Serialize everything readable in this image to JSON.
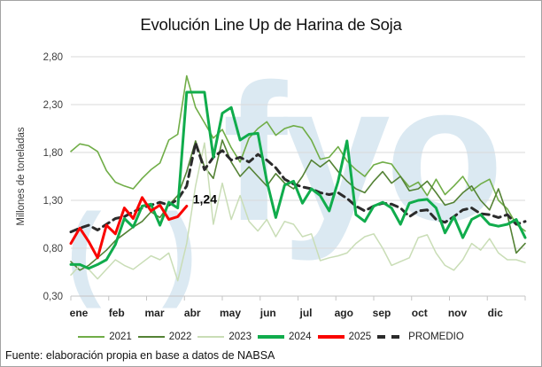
{
  "window": {
    "background": "#ffffff",
    "border_color": "#a3a3a3"
  },
  "chart_data": {
    "type": "line",
    "title": "Evolución Line Up de Harina de Soja",
    "ylabel": "Millones de toneladas",
    "xlabel": "",
    "ylim": [
      0.3,
      2.8
    ],
    "yticks": [
      0.3,
      0.8,
      1.3,
      1.8,
      2.3,
      2.8
    ],
    "ytick_labels": [
      "0,30",
      "0,80",
      "1,30",
      "1,80",
      "2,30",
      "2,80"
    ],
    "categories": [
      "ene",
      "feb",
      "mar",
      "abr",
      "may",
      "jun",
      "jul",
      "ago",
      "sep",
      "oct",
      "nov",
      "dic"
    ],
    "frequency": "weekly",
    "grid": "horizontal",
    "legend_position": "bottom",
    "watermark": {
      "text": "fyo",
      "prefix_glyphs": [
        "(",
        ")"
      ],
      "color": "#dbe9f2"
    },
    "annotation": {
      "text": "1,24",
      "series": "2025",
      "value": 1.24
    },
    "legend_order": [
      "2021",
      "2022",
      "2023",
      "2024",
      "2025",
      "PROMEDIO"
    ],
    "series": [
      {
        "name": "2021",
        "color": "#70ad47",
        "width": 1.6,
        "dash": null,
        "values": [
          1.81,
          1.89,
          1.87,
          1.81,
          1.61,
          1.49,
          1.45,
          1.42,
          1.53,
          1.62,
          1.69,
          1.93,
          1.99,
          2.6,
          2.27,
          2.11,
          1.95,
          2.04,
          1.85,
          1.7,
          1.95,
          2.05,
          2.12,
          1.98,
          2.05,
          2.08,
          2.06,
          1.93,
          1.73,
          1.75,
          1.86,
          1.71,
          1.62,
          1.55,
          1.67,
          1.7,
          1.68,
          1.55,
          1.44,
          1.49,
          1.35,
          1.52,
          1.36,
          1.45,
          1.55,
          1.4,
          1.47,
          1.52,
          1.3,
          1.21,
          1.05,
          0.98
        ]
      },
      {
        "name": "2022",
        "color": "#548235",
        "width": 1.6,
        "dash": null,
        "values": [
          0.66,
          0.57,
          0.62,
          0.7,
          0.78,
          0.88,
          0.95,
          1.02,
          1.08,
          1.18,
          1.12,
          1.25,
          1.35,
          1.6,
          1.92,
          1.65,
          1.53,
          1.93,
          1.7,
          1.55,
          1.65,
          1.55,
          1.45,
          1.58,
          1.48,
          1.42,
          1.55,
          1.72,
          1.65,
          1.72,
          1.6,
          1.5,
          1.42,
          1.38,
          1.5,
          1.6,
          1.48,
          1.55,
          1.4,
          1.42,
          1.5,
          1.38,
          1.25,
          1.28,
          1.38,
          1.45,
          1.3,
          1.2,
          1.42,
          1.15,
          0.75,
          0.85
        ]
      },
      {
        "name": "2023",
        "color": "#c9ddb6",
        "width": 1.5,
        "dash": null,
        "values": [
          0.52,
          0.62,
          0.58,
          0.48,
          0.58,
          0.68,
          0.62,
          0.58,
          0.65,
          0.72,
          0.68,
          0.75,
          0.46,
          0.85,
          1.45,
          1.9,
          1.05,
          1.48,
          1.1,
          1.35,
          1.08,
          0.98,
          1.1,
          0.92,
          1.08,
          1.05,
          0.92,
          0.95,
          0.67,
          0.7,
          0.72,
          0.75,
          0.85,
          0.92,
          0.95,
          0.8,
          0.62,
          0.66,
          0.7,
          0.91,
          0.94,
          0.75,
          0.62,
          0.57,
          0.68,
          0.85,
          0.78,
          0.9,
          0.75,
          0.68,
          0.68,
          0.65
        ]
      },
      {
        "name": "PROMEDIO",
        "color": "#2b2b2b",
        "width": 3,
        "dash": "8 5.5",
        "values": [
          0.97,
          1.01,
          1.04,
          0.99,
          1.05,
          1.11,
          1.13,
          1.18,
          1.22,
          1.25,
          1.28,
          1.25,
          1.31,
          1.45,
          1.9,
          1.62,
          1.75,
          1.82,
          1.72,
          1.75,
          1.7,
          1.78,
          1.72,
          1.64,
          1.52,
          1.47,
          1.44,
          1.42,
          1.38,
          1.36,
          1.38,
          1.32,
          1.24,
          1.19,
          1.24,
          1.27,
          1.26,
          1.22,
          1.13,
          1.19,
          1.2,
          1.1,
          1.07,
          1.13,
          1.2,
          1.22,
          1.16,
          1.15,
          1.12,
          1.15,
          1.05,
          1.08
        ]
      },
      {
        "name": "2024",
        "color": "#10ac4c",
        "width": 3,
        "dash": null,
        "values": [
          0.63,
          0.63,
          0.59,
          0.63,
          0.68,
          0.84,
          1.11,
          1.02,
          1.24,
          1.26,
          1.04,
          1.28,
          1.22,
          2.43,
          2.43,
          2.43,
          1.75,
          2.21,
          2.27,
          1.93,
          1.99,
          2.0,
          1.5,
          1.12,
          1.46,
          1.5,
          1.27,
          1.42,
          1.35,
          1.19,
          1.5,
          1.92,
          1.15,
          1.08,
          1.24,
          1.28,
          1.22,
          1.05,
          1.27,
          1.3,
          1.31,
          1.22,
          0.96,
          1.13,
          0.91,
          1.1,
          1.15,
          1.05,
          1.03,
          1.05,
          1.1,
          0.91
        ]
      },
      {
        "name": "2025",
        "color": "#fa0400",
        "width": 3,
        "dash": null,
        "values": [
          0.85,
          1.01,
          0.87,
          0.7,
          1.04,
          0.95,
          1.22,
          1.11,
          1.33,
          1.19,
          1.25,
          1.1,
          1.13,
          1.24
        ]
      }
    ]
  },
  "footer": {
    "source": "Fuente: elaboración propia en base a datos de NABSA"
  }
}
